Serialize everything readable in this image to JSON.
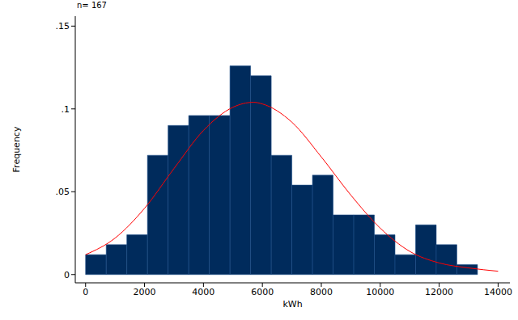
{
  "chart_data": {
    "type": "histogram",
    "title": "n= 167",
    "x_label": "kWh",
    "y_label": "Frequency",
    "bins": [
      0,
      700,
      1400,
      2100,
      2800,
      3500,
      4200,
      4900,
      5600,
      6300,
      7000,
      7700,
      8400,
      9100,
      9800,
      10500,
      11200,
      11900,
      12600,
      13300
    ],
    "values": [
      0.012,
      0.018,
      0.024,
      0.072,
      0.09,
      0.096,
      0.096,
      0.126,
      0.12,
      0.072,
      0.054,
      0.06,
      0.036,
      0.036,
      0.024,
      0.012,
      0.03,
      0.018,
      0.006
    ],
    "color": "#002b5c",
    "curve": {
      "type": "line",
      "color": "#ff0000",
      "x": [
        0,
        1000,
        2000,
        3000,
        4000,
        5000,
        5700,
        6000,
        7000,
        8000,
        9000,
        10000,
        11000,
        12000,
        13000,
        14000
      ],
      "values": [
        0.012,
        0.022,
        0.04,
        0.064,
        0.087,
        0.101,
        0.104,
        0.103,
        0.092,
        0.071,
        0.048,
        0.028,
        0.014,
        0.007,
        0.004,
        0.002
      ]
    },
    "xlim": [
      -350,
      14400
    ],
    "xticks": [
      0,
      2000,
      4000,
      6000,
      8000,
      10000,
      12000,
      14000
    ],
    "ylim": [
      -0.005,
      0.156
    ],
    "yticks": [
      0,
      {
        "value": 0.05,
        "label": ".05"
      },
      {
        "value": 0.1,
        "label": ".1"
      },
      {
        "value": 0.15,
        "label": ".15"
      }
    ]
  }
}
